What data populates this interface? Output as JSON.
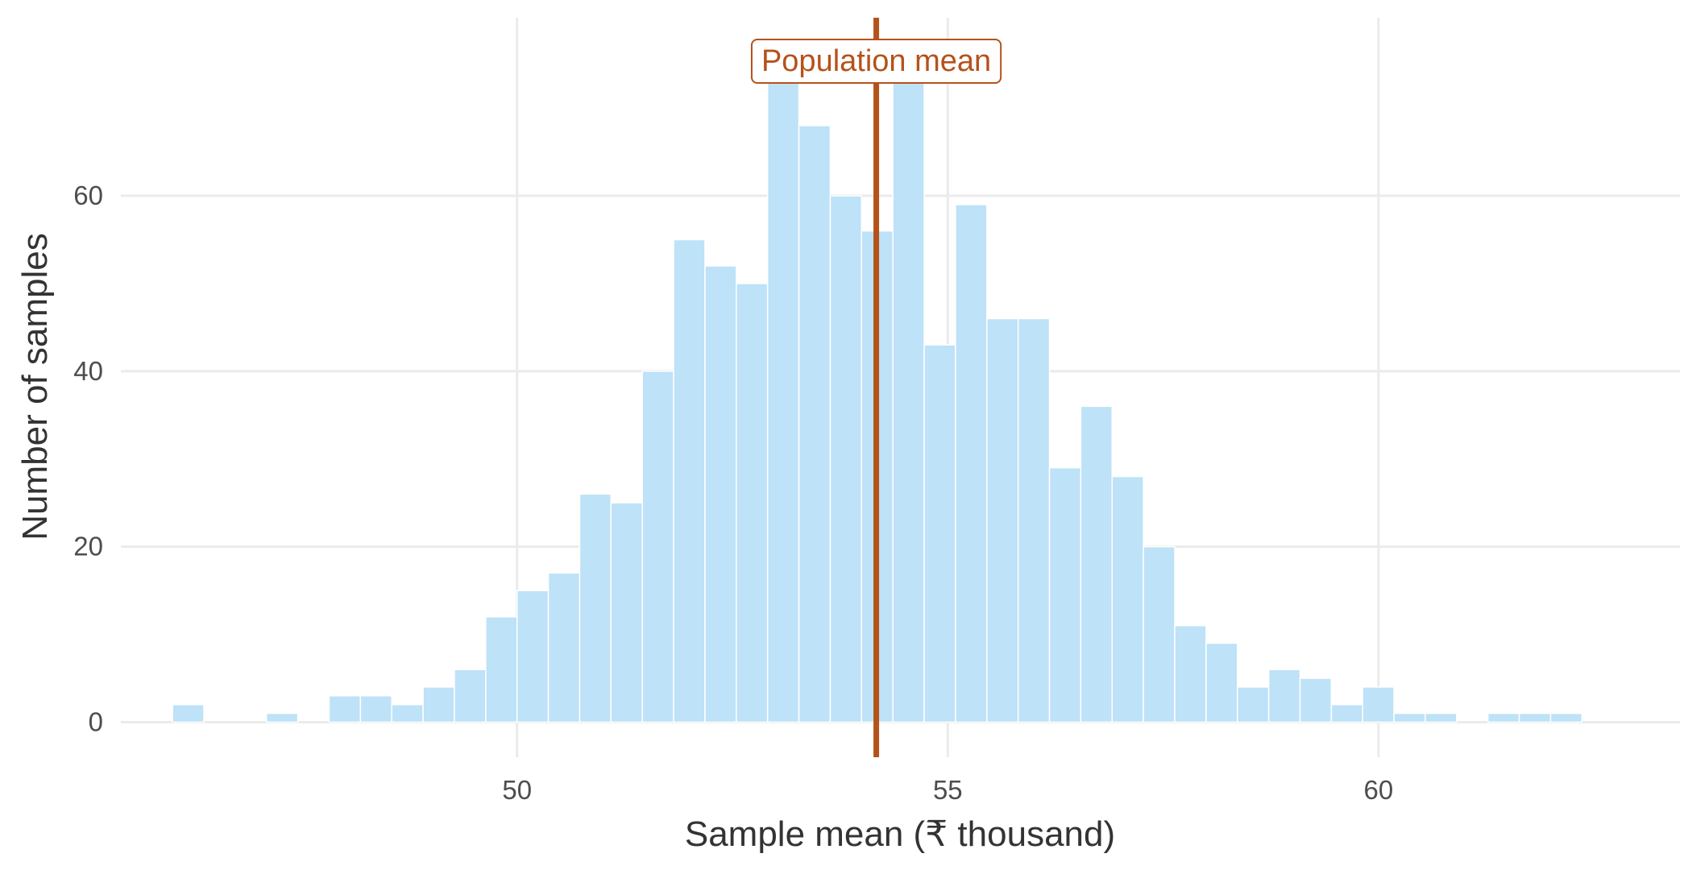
{
  "chart_data": {
    "type": "bar",
    "xlabel": "Sample mean (₹ thousand)",
    "ylabel": "Number of samples",
    "xlim": [
      45.4,
      63.5
    ],
    "ylim": [
      -4,
      80.3
    ],
    "x_ticks": [
      50,
      55,
      60
    ],
    "y_ticks": [
      0,
      20,
      40,
      60
    ],
    "bin_width": 0.3636,
    "bin_start": 46.0,
    "values": [
      2,
      0,
      0,
      1,
      0,
      3,
      3,
      2,
      4,
      6,
      12,
      15,
      17,
      26,
      25,
      40,
      55,
      52,
      50,
      73,
      68,
      60,
      56,
      73,
      43,
      59,
      46,
      46,
      29,
      36,
      28,
      20,
      11,
      9,
      4,
      6,
      5,
      2,
      4,
      1,
      1,
      0,
      1,
      1,
      1
    ],
    "bar_color": "#bee2f7",
    "grid": true,
    "reference_line": {
      "x": 54.17,
      "label": "Population mean",
      "color": "#b5521b"
    }
  }
}
